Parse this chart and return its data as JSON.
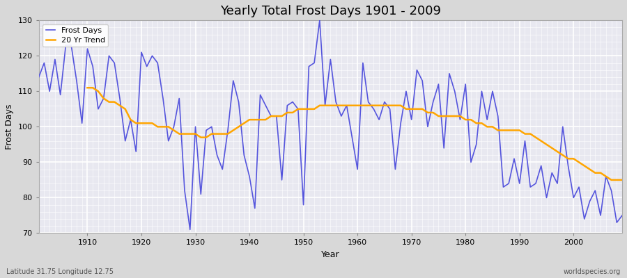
{
  "title": "Yearly Total Frost Days 1901 - 2009",
  "xlabel": "Year",
  "ylabel": "Frost Days",
  "subtitle_left": "Latitude 31.75 Longitude 12.75",
  "subtitle_right": "worldspecies.org",
  "legend_labels": [
    "Frost Days",
    "20 Yr Trend"
  ],
  "line_color": "#5555dd",
  "trend_color": "#FFA500",
  "bg_color": "#d8d8d8",
  "plot_bg_color": "#e8e8f0",
  "ylim": [
    70,
    130
  ],
  "xlim": [
    1901,
    2009
  ],
  "yticks": [
    70,
    80,
    90,
    100,
    110,
    120,
    130
  ],
  "xticks": [
    1910,
    1920,
    1930,
    1940,
    1950,
    1960,
    1970,
    1980,
    1990,
    2000
  ],
  "years": [
    1901,
    1902,
    1903,
    1904,
    1905,
    1906,
    1907,
    1908,
    1909,
    1910,
    1911,
    1912,
    1913,
    1914,
    1915,
    1916,
    1917,
    1918,
    1919,
    1920,
    1921,
    1922,
    1923,
    1924,
    1925,
    1926,
    1927,
    1928,
    1929,
    1930,
    1931,
    1932,
    1933,
    1934,
    1935,
    1936,
    1937,
    1938,
    1939,
    1940,
    1941,
    1942,
    1943,
    1944,
    1945,
    1946,
    1947,
    1948,
    1949,
    1950,
    1951,
    1952,
    1953,
    1954,
    1955,
    1956,
    1957,
    1958,
    1959,
    1960,
    1961,
    1962,
    1963,
    1964,
    1965,
    1966,
    1967,
    1968,
    1969,
    1970,
    1971,
    1972,
    1973,
    1974,
    1975,
    1976,
    1977,
    1978,
    1979,
    1980,
    1981,
    1982,
    1983,
    1984,
    1985,
    1986,
    1987,
    1988,
    1989,
    1990,
    1991,
    1992,
    1993,
    1994,
    1995,
    1996,
    1997,
    1998,
    1999,
    2000,
    2001,
    2002,
    2003,
    2004,
    2005,
    2006,
    2007,
    2008,
    2009
  ],
  "frost_days": [
    114,
    118,
    110,
    119,
    109,
    123,
    123,
    113,
    101,
    122,
    117,
    105,
    108,
    120,
    118,
    108,
    96,
    102,
    93,
    121,
    117,
    120,
    118,
    108,
    96,
    100,
    108,
    82,
    71,
    100,
    81,
    99,
    100,
    92,
    88,
    99,
    113,
    107,
    92,
    86,
    77,
    109,
    106,
    103,
    103,
    85,
    106,
    107,
    105,
    78,
    117,
    118,
    130,
    106,
    119,
    107,
    103,
    106,
    97,
    88,
    118,
    107,
    105,
    102,
    107,
    105,
    88,
    101,
    110,
    102,
    116,
    113,
    100,
    107,
    112,
    94,
    115,
    110,
    102,
    112,
    90,
    95,
    110,
    102,
    110,
    103,
    83,
    84,
    91,
    84,
    96,
    83,
    84,
    89,
    80,
    87,
    84,
    100,
    89,
    80,
    83,
    74,
    79,
    82,
    75,
    86,
    82,
    73,
    75
  ],
  "trend_years": [
    1910,
    1911,
    1912,
    1913,
    1914,
    1915,
    1916,
    1917,
    1918,
    1919,
    1920,
    1921,
    1922,
    1923,
    1924,
    1925,
    1926,
    1927,
    1928,
    1929,
    1930,
    1931,
    1932,
    1933,
    1934,
    1935,
    1936,
    1937,
    1938,
    1939,
    1940,
    1941,
    1942,
    1943,
    1944,
    1945,
    1946,
    1947,
    1948,
    1949,
    1950,
    1951,
    1952,
    1953,
    1954,
    1955,
    1956,
    1957,
    1958,
    1959,
    1960,
    1961,
    1962,
    1963,
    1964,
    1965,
    1966,
    1967,
    1968,
    1969,
    1970,
    1971,
    1972,
    1973,
    1974,
    1975,
    1976,
    1977,
    1978,
    1979,
    1980,
    1981,
    1982,
    1983,
    1984,
    1985,
    1986,
    1987,
    1988,
    1989,
    1990,
    1991,
    1992,
    1993,
    1994,
    1995,
    1996,
    1997,
    1998,
    1999,
    2000,
    2001,
    2002,
    2003,
    2004,
    2005,
    2006,
    2007,
    2008,
    2009
  ],
  "trend_values": [
    111,
    111,
    110,
    108,
    107,
    107,
    106,
    105,
    102,
    101,
    101,
    101,
    101,
    100,
    100,
    100,
    99,
    98,
    98,
    98,
    98,
    97,
    97,
    98,
    98,
    98,
    98,
    99,
    100,
    101,
    102,
    102,
    102,
    102,
    103,
    103,
    103,
    104,
    104,
    105,
    105,
    105,
    105,
    106,
    106,
    106,
    106,
    106,
    106,
    106,
    106,
    106,
    106,
    106,
    106,
    106,
    106,
    106,
    106,
    105,
    105,
    105,
    105,
    104,
    104,
    103,
    103,
    103,
    103,
    103,
    102,
    102,
    101,
    101,
    100,
    100,
    99,
    99,
    99,
    99,
    99,
    98,
    98,
    97,
    96,
    95,
    94,
    93,
    92,
    91,
    91,
    90,
    89,
    88,
    87,
    87,
    86,
    85,
    85,
    85
  ]
}
